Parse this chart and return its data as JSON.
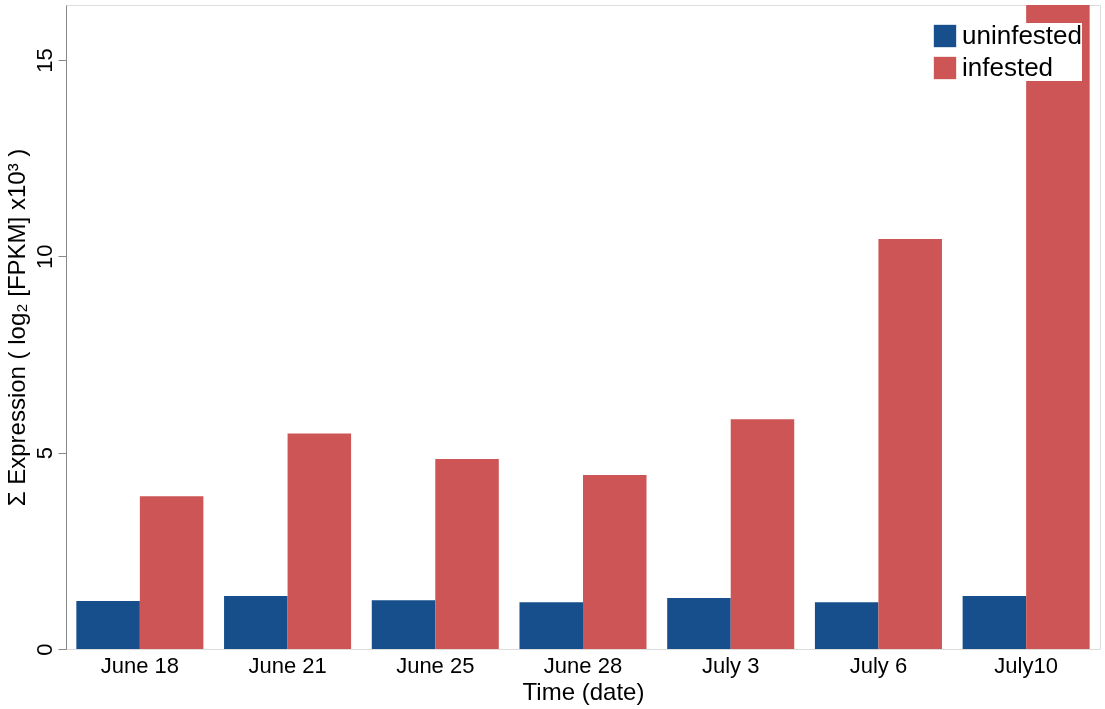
{
  "chart_data": {
    "type": "bar",
    "xlabel": "Time (date)",
    "ylabel": "Σ Expression ( log₂ [FPKM] x10³ )",
    "categories": [
      "June 18",
      "June 21",
      "June 25",
      "June 28",
      "July 3",
      "July 6",
      "July10"
    ],
    "series": [
      {
        "name": "uninfested",
        "color": "#164f8c",
        "values": [
          1.22,
          1.35,
          1.24,
          1.19,
          1.3,
          1.19,
          1.35
        ]
      },
      {
        "name": "infested",
        "color": "#cd5555",
        "values": [
          3.89,
          5.49,
          4.84,
          4.43,
          5.85,
          10.44,
          16.4
        ]
      }
    ],
    "ylim": [
      0,
      16.4
    ],
    "yticks": [
      0,
      5,
      10,
      15
    ],
    "grid": false,
    "legend": "top right"
  }
}
